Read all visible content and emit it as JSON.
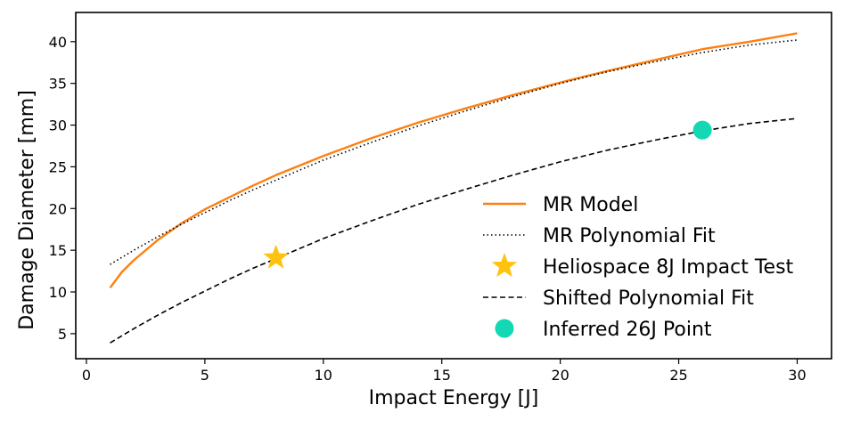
{
  "chart_data": {
    "type": "line",
    "title": "",
    "xlabel": "Impact Energy [J]",
    "ylabel": "Damage Diameter [mm]",
    "xlim": [
      -0.45,
      31.45
    ],
    "ylim": [
      2.0,
      43.5
    ],
    "xticks": [
      0,
      5,
      10,
      15,
      20,
      25,
      30
    ],
    "yticks": [
      5,
      10,
      15,
      20,
      25,
      30,
      35,
      40
    ],
    "grid": false,
    "legend_location": "lower-right",
    "series": [
      {
        "name": "MR Model",
        "kind": "line",
        "style": "solid",
        "color": "#ff7f0e",
        "x": [
          1,
          1.5,
          2,
          3,
          4,
          5,
          6,
          7,
          8,
          10,
          12,
          14,
          16,
          18,
          20,
          22,
          24,
          26,
          28,
          30
        ],
        "y": [
          10.5,
          12.4,
          13.8,
          16.2,
          18.2,
          19.9,
          21.3,
          22.7,
          24.0,
          26.3,
          28.4,
          30.3,
          32.0,
          33.6,
          35.1,
          36.5,
          37.8,
          39.1,
          40.0,
          41.0
        ]
      },
      {
        "name": "MR Polynomial Fit",
        "kind": "line",
        "style": "dotted",
        "color": "#000000",
        "x": [
          1,
          2,
          3,
          4,
          5,
          6,
          7,
          8,
          10,
          12,
          14,
          16,
          18,
          20,
          22,
          24,
          26,
          28,
          30
        ],
        "y": [
          13.3,
          15.0,
          16.6,
          18.1,
          19.5,
          20.9,
          22.2,
          23.4,
          25.8,
          27.9,
          29.9,
          31.7,
          33.4,
          35.0,
          36.4,
          37.6,
          38.7,
          39.6,
          40.2
        ]
      },
      {
        "name": "Heliospace 8J Impact Test",
        "kind": "marker",
        "marker": "star",
        "color": "#ffc20e",
        "x": [
          8
        ],
        "y": [
          14.1
        ]
      },
      {
        "name": "Shifted Polynomial Fit",
        "kind": "line",
        "style": "dashed",
        "color": "#000000",
        "x": [
          1,
          2,
          3,
          4,
          5,
          6,
          7,
          8,
          10,
          12,
          14,
          16,
          18,
          20,
          22,
          24,
          26,
          28,
          30
        ],
        "y": [
          3.9,
          5.6,
          7.2,
          8.7,
          10.1,
          11.5,
          12.8,
          14.0,
          16.4,
          18.5,
          20.5,
          22.3,
          24.0,
          25.6,
          27.0,
          28.2,
          29.3,
          30.2,
          30.8
        ]
      },
      {
        "name": "Inferred 26J Point",
        "kind": "marker",
        "marker": "circle",
        "color": "#14d8b4",
        "x": [
          26
        ],
        "y": [
          29.4
        ]
      }
    ]
  }
}
